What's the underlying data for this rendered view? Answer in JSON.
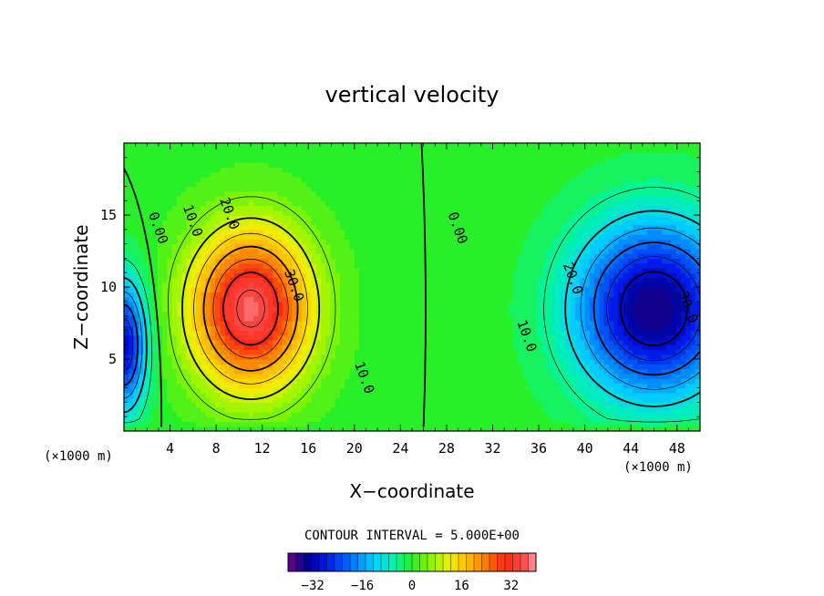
{
  "chart_data": {
    "type": "heatmap",
    "title": "vertical velocity",
    "xlabel": "X−coordinate",
    "ylabel": "Z−coordinate",
    "x_unit": "(×1000 m)",
    "z_unit": "(×1000 m)",
    "xlim": [
      0,
      50
    ],
    "ylim": [
      0,
      20
    ],
    "x_ticks": [
      4,
      8,
      12,
      16,
      20,
      24,
      28,
      32,
      36,
      40,
      44,
      48
    ],
    "y_ticks": [
      5,
      10,
      15
    ],
    "contour_interval_text": "CONTOUR INTERVAL = 5.000E+00",
    "contour_interval": 5,
    "field": {
      "description": "two counter-rotating convective cells",
      "updraft": {
        "x_center": 11,
        "z_center": 8.5,
        "max": 37
      },
      "downdraft_main": {
        "x_center": 46,
        "z_center": 8.5,
        "min": -36
      },
      "downdraft_left_edge": {
        "x_center": 0,
        "z_center": 6,
        "min": -30
      }
    },
    "contour_labels": [
      {
        "text": "0.00",
        "x": 2.6,
        "z": 14
      },
      {
        "text": "10.0",
        "x": 5.6,
        "z": 14.5
      },
      {
        "text": "20.0",
        "x": 8.8,
        "z": 15
      },
      {
        "text": "30.0",
        "x": 14.4,
        "z": 10
      },
      {
        "text": "10.0",
        "x": 20.5,
        "z": 3.6
      },
      {
        "text": "0.00",
        "x": 28.6,
        "z": 14
      },
      {
        "text": "20.0",
        "x": 38.6,
        "z": 10.5
      },
      {
        "text": "10.0",
        "x": 34.6,
        "z": 6.5
      },
      {
        "text": "30.0",
        "x": 48.6,
        "z": 8.5
      }
    ],
    "colorbar": {
      "range": [
        -40,
        40
      ],
      "ticks": [
        "−32",
        "−16",
        "0",
        "16",
        "32"
      ],
      "tick_values": [
        -32,
        -16,
        0,
        16,
        32
      ]
    }
  }
}
